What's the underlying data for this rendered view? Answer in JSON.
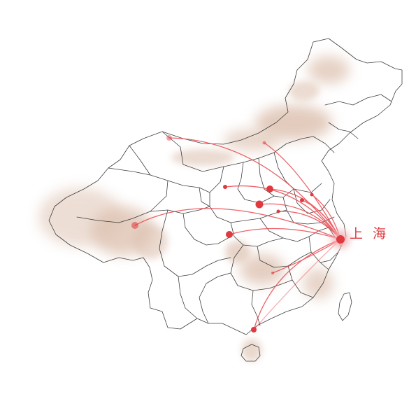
{
  "hub": {
    "label": "上 海"
  },
  "colors": {
    "route_line": "#e8474e",
    "node_fill": "#e0393f",
    "hub_glow": "#f2b3b5",
    "terrain": "#d8b8a4",
    "border_line": "#1e1e1e",
    "label": "#e0393f"
  },
  "icons": {
    "node": "red-dot",
    "hub": "glowing-red-dot"
  }
}
